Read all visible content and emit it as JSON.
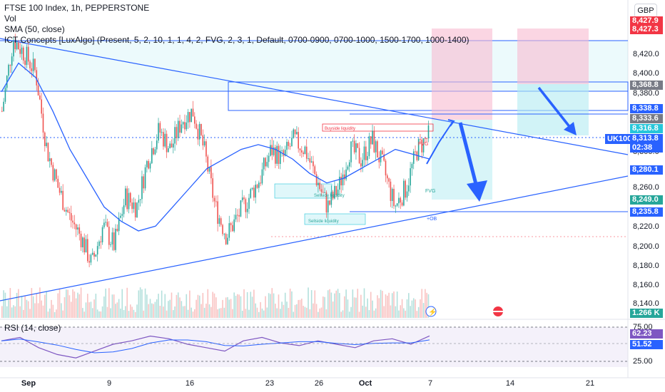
{
  "legend": {
    "title": "FTSE 100 Index, 1h, PEPPERSTONE",
    "vol": "Vol",
    "sma": "SMA (50, close)",
    "ict": "ICT Concepts [LuxAlgo] (Present, 5, 2, 10, 1, 1, 4, 2, FVG, 2, 3, 1, Default, 0700-0900, 0700-1000, 1500-1700, 1000-1400)"
  },
  "rsi_legend": "RSI (14, close)",
  "currency": "GBP",
  "ticker": "UK100",
  "price_tags": [
    {
      "label": "8,427.9",
      "color": "#f23645"
    },
    {
      "label": "8,427.3",
      "color": "#f23645"
    },
    {
      "label": "8,368.8",
      "color": "#787b86"
    },
    {
      "label": "8,338.8",
      "color": "#2962ff"
    },
    {
      "label": "8,333.6",
      "color": "#787b86"
    },
    {
      "label": "8,316.8",
      "color": "#26c6da"
    },
    {
      "label": "8,313.8",
      "color": "#2962ff"
    },
    {
      "label": "02:38",
      "color": "#2962ff"
    },
    {
      "label": "8,280.1",
      "color": "#2962ff"
    },
    {
      "label": "8,249.0",
      "color": "#26a69a"
    },
    {
      "label": "8,235.8",
      "color": "#2962ff"
    },
    {
      "label": "1.266 K",
      "color": "#26a69a"
    },
    {
      "label": "62.23",
      "color": "#7e57c2"
    },
    {
      "label": "51.52",
      "color": "#2962ff"
    }
  ],
  "annotations": {
    "buyside": "Buyside liquidity",
    "sellside1": "Sellside liquidity",
    "sellside2": "Sellside liquidity",
    "fvg": "FVG",
    "fvg2": "FVG",
    "ob": "+OB"
  },
  "chart_data": {
    "type": "line",
    "title": "FTSE 100 Index, 1h, PEPPERSTONE",
    "x_ticks": [
      "Sep",
      "9",
      "16",
      "23",
      "26",
      "Oct",
      "7",
      "14",
      "21"
    ],
    "y_ticks": [
      "8,420.0",
      "8,400.0",
      "8,380.0",
      "8,360.0",
      "8,300.0",
      "8,260.0",
      "8,240.0",
      "8,220.0",
      "8,200.0",
      "8,180.0",
      "8,160.0",
      "8,140.0"
    ],
    "rsi_ticks": [
      "75.00",
      "25.00"
    ],
    "series": [
      {
        "name": "SMA (50, close)",
        "values": [
          8360,
          8390,
          8375,
          8340,
          8300,
          8270,
          8240,
          8225,
          8215,
          8220,
          8240,
          8260,
          8280,
          8290,
          8300,
          8305,
          8300,
          8290,
          8275,
          8265,
          8270,
          8280,
          8290,
          8300,
          8295,
          8290
        ]
      }
    ],
    "close_path": [
      8340,
      8415,
      8400,
      8380,
      8300,
      8260,
      8230,
      8210,
      8180,
      8220,
      8200,
      8250,
      8240,
      8290,
      8320,
      8300,
      8330,
      8340,
      8300,
      8240,
      8210,
      8230,
      8250,
      8270,
      8300,
      8290,
      8310,
      8300,
      8270,
      8240,
      8260,
      8300,
      8290,
      8310,
      8280,
      8240,
      8260,
      8300,
      8313.8
    ],
    "levels": {
      "current_price": 8313.8,
      "resistance": 8338.8,
      "support": 8235.8,
      "pivot": 8280.1
    },
    "rsi_values": [
      55,
      60,
      45,
      35,
      30,
      40,
      50,
      55,
      62,
      58,
      50,
      45,
      40,
      55,
      60,
      52,
      48,
      55,
      50,
      45,
      55,
      58,
      50,
      62.23
    ]
  }
}
